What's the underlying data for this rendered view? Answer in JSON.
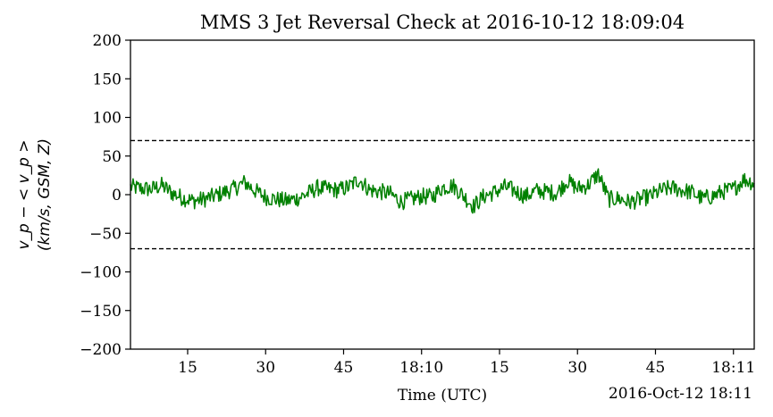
{
  "chart_data": {
    "type": "line",
    "title": "MMS 3 Jet Reversal Check at 2016-10-12 18:09:04",
    "xlabel": "Time (UTC)",
    "x_offset_label": "2016-Oct-12 18:11",
    "ylabel_line1": "v_p − < v_p >",
    "ylabel_line2": "(km/s, GSM, Z)",
    "ylim": [
      -200,
      200
    ],
    "xlim": [
      "18:09:04",
      "18:11:04"
    ],
    "yticks": [
      "−200",
      "−150",
      "−100",
      "−50",
      "0",
      "50",
      "100",
      "150",
      "200"
    ],
    "xticks": [
      "15",
      "30",
      "45",
      "18:10",
      "15",
      "30",
      "45",
      "18:11"
    ],
    "threshold": 70,
    "series": [
      {
        "color": "#008000",
        "x_seconds_from_18_09": [
          4,
          6,
          8,
          10,
          12,
          14,
          16,
          18,
          20,
          22,
          24,
          26,
          28,
          30,
          32,
          34,
          36,
          38,
          40,
          42,
          44,
          46,
          48,
          50,
          52,
          54,
          56,
          58,
          60,
          62,
          64,
          66,
          68,
          70,
          72,
          74,
          76,
          78,
          80,
          82,
          84,
          86,
          88,
          90,
          92,
          94,
          96,
          98,
          100,
          102,
          104,
          106,
          108,
          110,
          112,
          114,
          116,
          118,
          120,
          122,
          124
        ],
        "values": [
          10,
          8,
          7,
          12,
          2,
          -4,
          -8,
          -6,
          -2,
          3,
          8,
          16,
          5,
          -3,
          -6,
          -8,
          -5,
          1,
          9,
          7,
          6,
          10,
          20,
          6,
          4,
          1,
          -9,
          -6,
          -2,
          -3,
          9,
          12,
          -1,
          -15,
          -2,
          3,
          10,
          5,
          -2,
          5,
          4,
          2,
          18,
          8,
          12,
          27,
          -6,
          -5,
          -10,
          -6,
          -2,
          5,
          9,
          6,
          3,
          -5,
          -2,
          4,
          7,
          20,
          15
        ]
      }
    ]
  }
}
